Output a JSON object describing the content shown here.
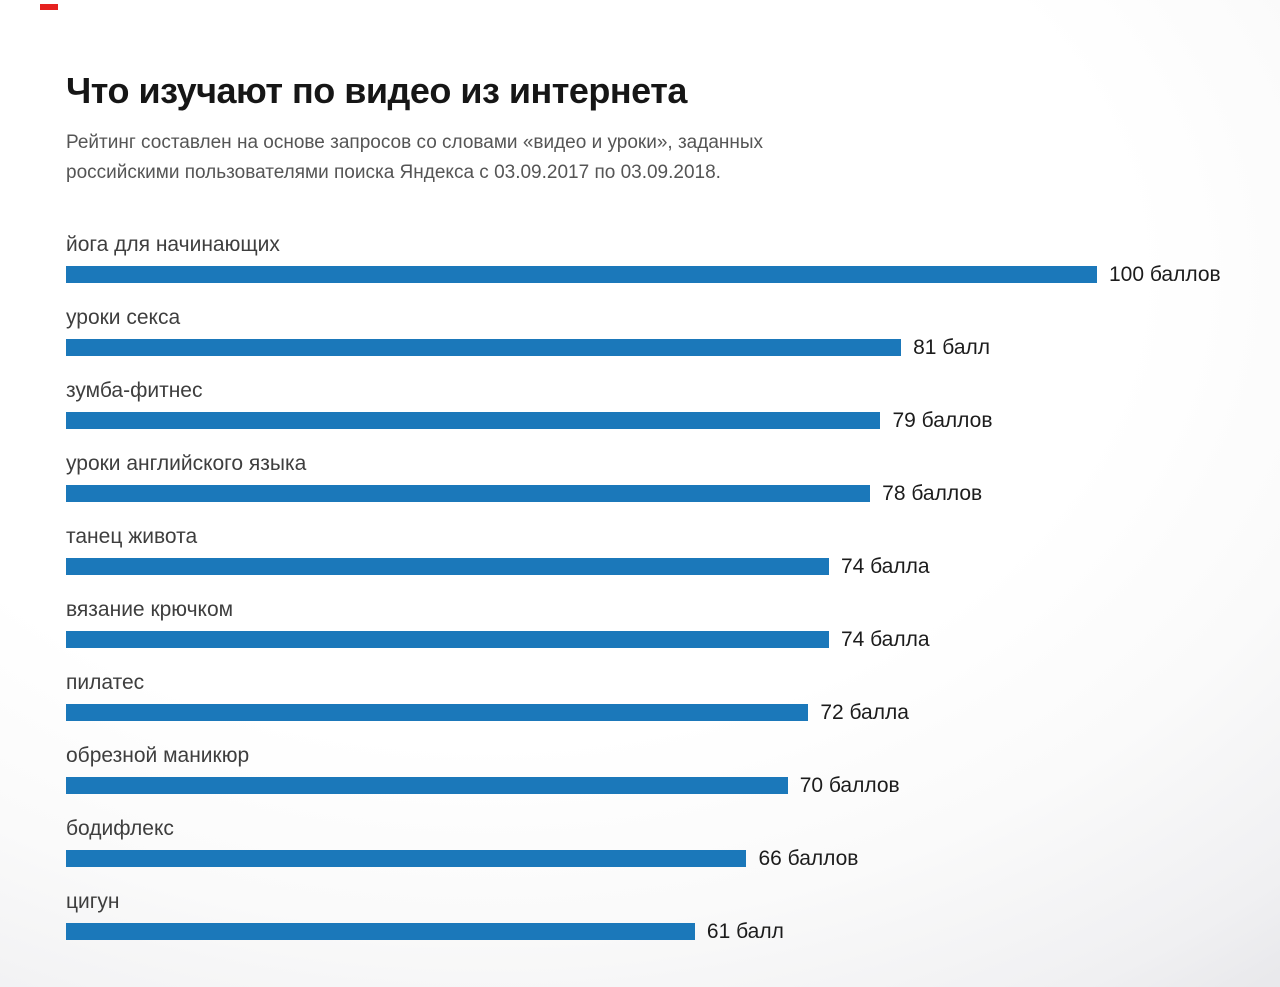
{
  "decor": {
    "red_dash_color": "#e6211f"
  },
  "chart_data": {
    "type": "bar",
    "orientation": "horizontal",
    "title": "Что изучают по видео из интернета",
    "subtitle_lines": [
      "Рейтинг составлен на основе запросов со словами «видео и уроки», заданных",
      "российскими пользователями поиска Яндекса с 03.09.2017 по 03.09.2018."
    ],
    "xlim": [
      0,
      100
    ],
    "max_value": 100,
    "bar_color": "#1b78ba",
    "grid": false,
    "legend": false,
    "categories": [
      "йога для начинающих",
      "уроки секса",
      "зумба-фитнес",
      "уроки английского языка",
      "танец живота",
      "вязание крючком",
      "пилатес",
      "обрезной маникюр",
      "бодифлекс",
      "цигун"
    ],
    "values": [
      100,
      81,
      79,
      78,
      74,
      74,
      72,
      70,
      66,
      61
    ],
    "items": [
      {
        "label": "йога для начинающих",
        "value": 100,
        "value_label": "100 баллов"
      },
      {
        "label": "уроки секса",
        "value": 81,
        "value_label": "81 балл"
      },
      {
        "label": "зумба-фитнес",
        "value": 79,
        "value_label": "79 баллов"
      },
      {
        "label": "уроки английского языка",
        "value": 78,
        "value_label": "78 баллов"
      },
      {
        "label": "танец живота",
        "value": 74,
        "value_label": "74 балла"
      },
      {
        "label": "вязание крючком",
        "value": 74,
        "value_label": "74 балла"
      },
      {
        "label": "пилатес",
        "value": 72,
        "value_label": "72 балла"
      },
      {
        "label": "обрезной маникюр",
        "value": 70,
        "value_label": "70 баллов"
      },
      {
        "label": "бодифлекс",
        "value": 66,
        "value_label": "66 баллов"
      },
      {
        "label": "цигун",
        "value": 61,
        "value_label": "61 балл"
      }
    ]
  }
}
